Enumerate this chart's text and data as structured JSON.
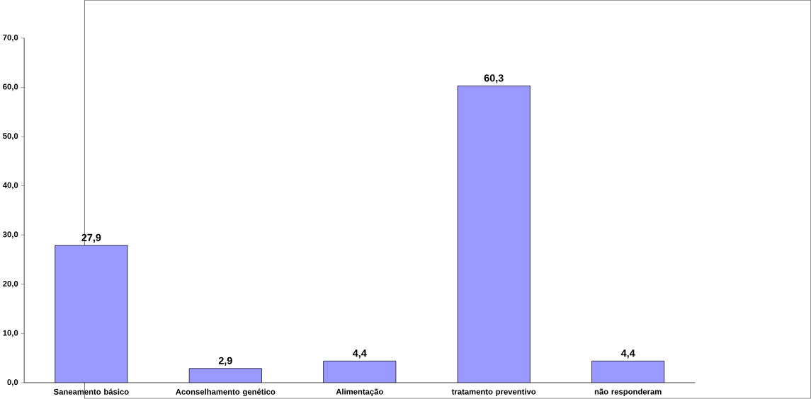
{
  "chart_data": {
    "type": "bar",
    "categories": [
      "Saneamento básico",
      "Aconselhamento genético",
      "Alimentação",
      "tratamento preventivo",
      "não responderam"
    ],
    "values": [
      27.9,
      2.9,
      4.4,
      60.3,
      4.4
    ],
    "value_labels": [
      "27,9",
      "2,9",
      "4,4",
      "60,3",
      "4,4"
    ],
    "color": "#9999ff",
    "ylim": [
      0,
      70
    ],
    "yticks": [
      {
        "value": 0,
        "label": "0,0"
      },
      {
        "value": 10,
        "label": "10,0"
      },
      {
        "value": 20,
        "label": "20,0"
      },
      {
        "value": 30,
        "label": "30,0"
      },
      {
        "value": 40,
        "label": "40,0"
      },
      {
        "value": 50,
        "label": "50,0"
      },
      {
        "value": 60,
        "label": "60,0"
      },
      {
        "value": 70,
        "label": "70,0"
      }
    ]
  }
}
